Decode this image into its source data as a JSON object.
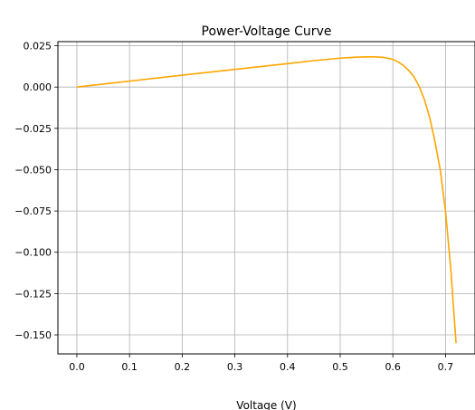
{
  "chart_data": {
    "type": "line",
    "title": "Power-Voltage Curve",
    "xlabel": "Voltage (V)",
    "ylabel": "",
    "xlim": [
      -0.036,
      0.756
    ],
    "ylim": [
      -0.1615,
      0.0275
    ],
    "grid": true,
    "x_ticks": [
      0.0,
      0.1,
      0.2,
      0.3,
      0.4,
      0.5,
      0.6,
      0.7
    ],
    "x_tick_labels": [
      "0.0",
      "0.1",
      "0.2",
      "0.3",
      "0.4",
      "0.5",
      "0.6",
      "0.7"
    ],
    "y_ticks": [
      0.025,
      0.0,
      -0.025,
      -0.05,
      -0.075,
      -0.1,
      -0.125,
      -0.15
    ],
    "y_tick_labels": [
      "0.025",
      "0.000",
      "−0.025",
      "−0.050",
      "−0.075",
      "−0.100",
      "−0.125",
      "−0.150"
    ],
    "series": [
      {
        "color": "#FFA500",
        "x": [
          0.0,
          0.1,
          0.2,
          0.3,
          0.4,
          0.45,
          0.5,
          0.53,
          0.55,
          0.56,
          0.57,
          0.58,
          0.59,
          0.6,
          0.61,
          0.62,
          0.63,
          0.64,
          0.65,
          0.66,
          0.67,
          0.68,
          0.69,
          0.7,
          0.71,
          0.72
        ],
        "y": [
          0.0,
          0.0036,
          0.0072,
          0.0107,
          0.0142,
          0.016,
          0.0175,
          0.0181,
          0.0183,
          0.0183,
          0.0182,
          0.018,
          0.0175,
          0.0168,
          0.0152,
          0.0131,
          0.0101,
          0.0063,
          0.0004,
          -0.0076,
          -0.0185,
          -0.033,
          -0.05,
          -0.075,
          -0.11,
          -0.155
        ]
      }
    ]
  }
}
